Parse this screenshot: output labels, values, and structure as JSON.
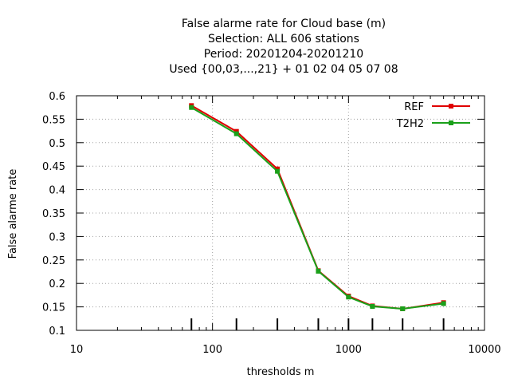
{
  "chart_data": {
    "type": "line",
    "title_lines": [
      "False alarme rate  for Cloud base (m)",
      "Selection: ALL    606 stations",
      "Period: 20201204-20201210",
      "Used {00,03,...,21} + 01 02 04 05 07 08"
    ],
    "xlabel": "thresholds m",
    "ylabel": "False alarme rate",
    "x_scale": "log",
    "xlim": [
      10,
      10000
    ],
    "ylim": [
      0.1,
      0.6
    ],
    "grid": true,
    "legend_position": "top-right",
    "x_ticks": [
      10,
      100,
      1000,
      10000
    ],
    "x_tick_labels": [
      "10",
      "100",
      "1000",
      "10000"
    ],
    "y_ticks": [
      0.1,
      0.15,
      0.2,
      0.25,
      0.3,
      0.35,
      0.4,
      0.45,
      0.5,
      0.55,
      0.6
    ],
    "y_tick_labels": [
      "0.1",
      "0.15",
      "0.2",
      "0.25",
      "0.3",
      "0.35",
      "0.4",
      "0.45",
      "0.5",
      "0.55",
      "0.6"
    ],
    "threshold_markers": [
      70,
      150,
      300,
      600,
      1000,
      1500,
      2500,
      5000
    ],
    "x": [
      70,
      150,
      300,
      600,
      1000,
      1500,
      2500,
      5000
    ],
    "series": [
      {
        "name": "REF",
        "color": "#e00000",
        "values": [
          0.579,
          0.524,
          0.444,
          0.227,
          0.173,
          0.152,
          0.146,
          0.159
        ]
      },
      {
        "name": "T2H2",
        "color": "#1aa01a",
        "values": [
          0.575,
          0.519,
          0.439,
          0.226,
          0.171,
          0.151,
          0.146,
          0.157
        ]
      }
    ]
  }
}
